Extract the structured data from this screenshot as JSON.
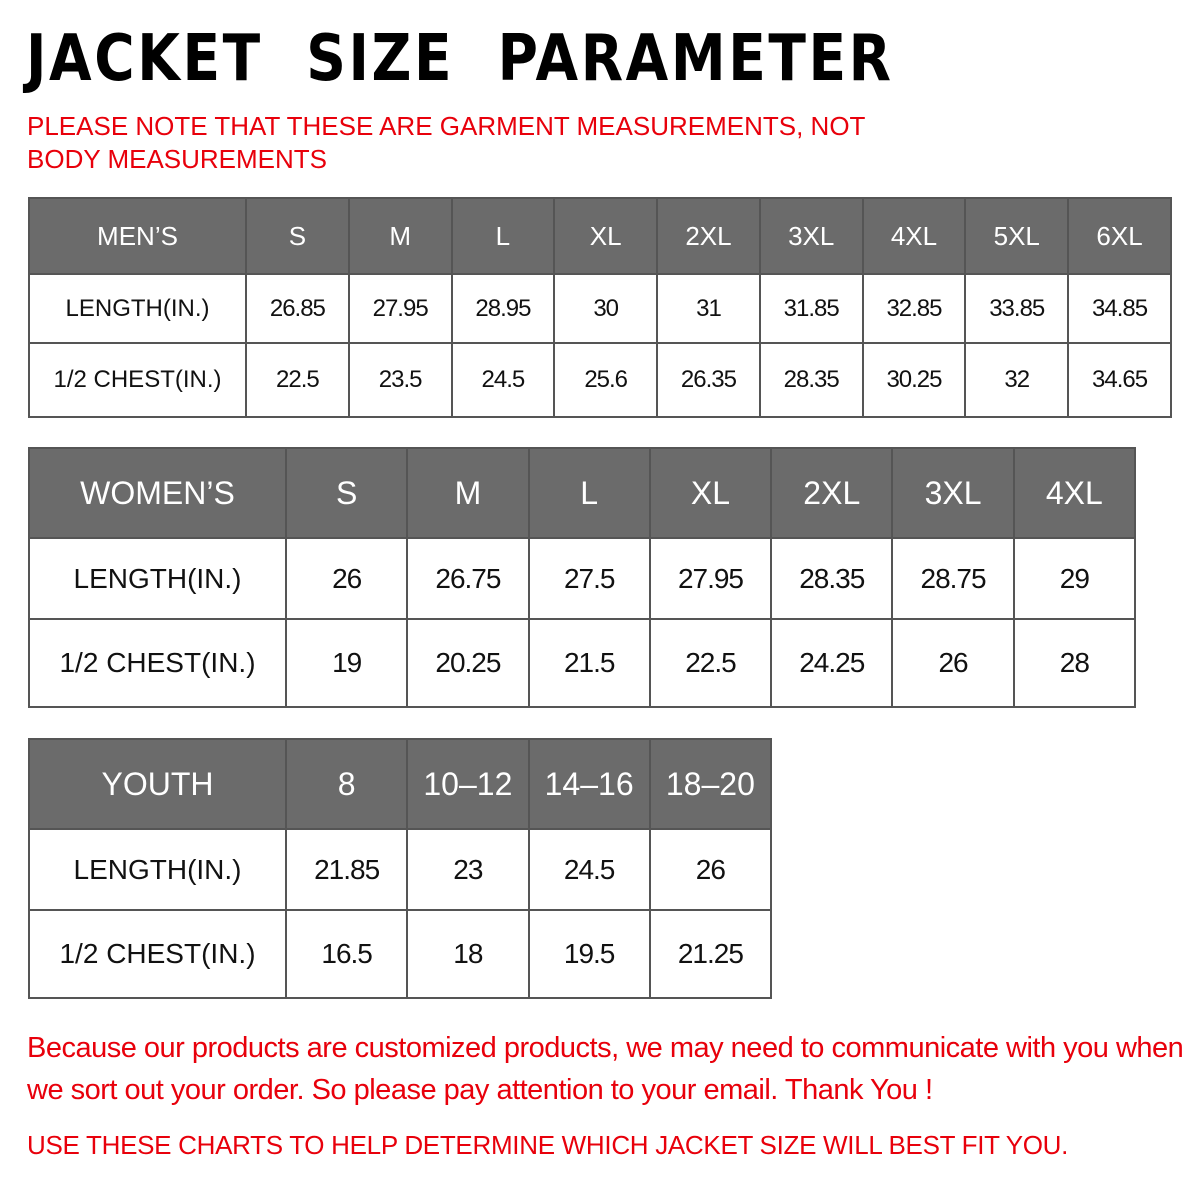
{
  "title": "JACKET  SIZE  PARAMETER",
  "note": "PLEASE NOTE THAT THESE ARE GARMENT MEASUREMENTS, NOT BODY MEASUREMENTS",
  "colors": {
    "header_bg": "#6b6b6b",
    "accent_red": "#e8000b"
  },
  "tables": [
    {
      "id": "men",
      "headers": [
        "MEN’S",
        "S",
        "M",
        "L",
        "XL",
        "2XL",
        "3XL",
        "4XL",
        "5XL",
        "6XL"
      ],
      "rows": [
        [
          "LENGTH(IN.)",
          "26.85",
          "27.95",
          "28.95",
          "30",
          "31",
          "31.85",
          "32.85",
          "33.85",
          "34.85"
        ],
        [
          "1/2 CHEST(IN.)",
          "22.5",
          "23.5",
          "24.5",
          "25.6",
          "26.35",
          "28.35",
          "30.25",
          "32",
          "34.65"
        ]
      ]
    },
    {
      "id": "women",
      "headers": [
        "WOMEN’S",
        "S",
        "M",
        "L",
        "XL",
        "2XL",
        "3XL",
        "4XL"
      ],
      "rows": [
        [
          "LENGTH(IN.)",
          "26",
          "26.75",
          "27.5",
          "27.95",
          "28.35",
          "28.75",
          "29"
        ],
        [
          "1/2 CHEST(IN.)",
          "19",
          "20.25",
          "21.5",
          "22.5",
          "24.25",
          "26",
          "28"
        ]
      ]
    },
    {
      "id": "youth",
      "headers": [
        "YOUTH",
        "8",
        "10–12",
        "14–16",
        "18–20"
      ],
      "rows": [
        [
          "LENGTH(IN.)",
          "21.85",
          "23",
          "24.5",
          "26"
        ],
        [
          "1/2 CHEST(IN.)",
          "16.5",
          "18",
          "19.5",
          "21.25"
        ]
      ]
    }
  ],
  "paragraph": "Because our products are customized products, we may need to communicate with you when we sort out your order. So please pay attention to your email. Thank You !",
  "footer": "USE THESE CHARTS TO HELP DETERMINE WHICH JACKET SIZE WILL BEST FIT YOU."
}
